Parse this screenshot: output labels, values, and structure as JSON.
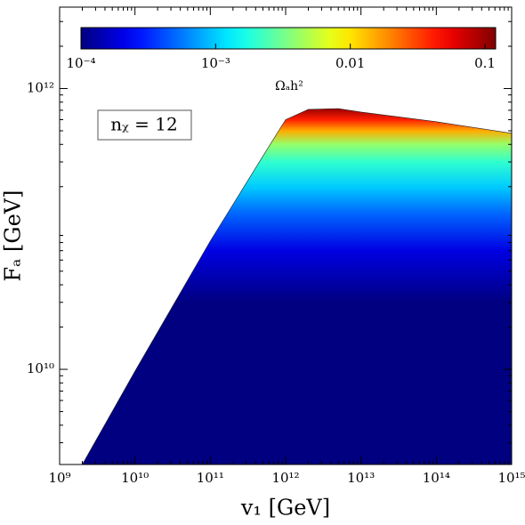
{
  "chart_data": {
    "type": "region",
    "xlabel": "v₁ [GeV]",
    "ylabel": "Fₐ [GeV]",
    "annotation": "nᵪ = 12",
    "x": [
      2000000000,
      10000000000,
      100000000000,
      500000000000,
      1000000000000,
      2000000000000,
      5000000000000,
      10000000000000,
      100000000000000,
      1000000000000000
    ],
    "values": [
      2100000000,
      9700000000,
      82000000000,
      330000000000,
      600000000000,
      710000000000,
      720000000000,
      680000000000,
      580000000000,
      480000000000
    ],
    "xlim": [
      1000000000,
      1000000000000000
    ],
    "ylim": [
      2100000000,
      3800000000000
    ],
    "xscale": "log",
    "yscale": "log",
    "xticks": [
      {
        "value": 1000000000,
        "label": "10⁹"
      },
      {
        "value": 10000000000,
        "label": "10¹⁰"
      },
      {
        "value": 100000000000,
        "label": "10¹¹"
      },
      {
        "value": 1000000000000,
        "label": "10¹²"
      },
      {
        "value": 10000000000000,
        "label": "10¹³"
      },
      {
        "value": 100000000000000,
        "label": "10¹⁴"
      },
      {
        "value": 1000000000000000,
        "label": "10¹⁵"
      }
    ],
    "yticks": [
      {
        "value": 10000000000,
        "label": "10¹⁰"
      },
      {
        "value": 1000000000000,
        "label": "10¹²"
      }
    ],
    "color_profile": {
      "y": [
        720000000000,
        600000000000,
        500000000000,
        400000000000,
        300000000000,
        200000000000,
        130000000000,
        70000000000,
        30000000000
      ],
      "values": [
        0.1,
        0.04,
        0.015,
        0.004,
        0.002,
        0.001,
        0.0005,
        0.0002,
        0.0001
      ]
    },
    "colorbar": {
      "label": "Ωₐh²",
      "colormap": "jet",
      "clim": [
        0.0001,
        0.12
      ],
      "scale": "log",
      "ticks": [
        {
          "value": 0.0001,
          "label": "10⁻⁴"
        },
        {
          "value": 0.001,
          "label": "10⁻³"
        },
        0.01,
        0.1
      ]
    }
  }
}
